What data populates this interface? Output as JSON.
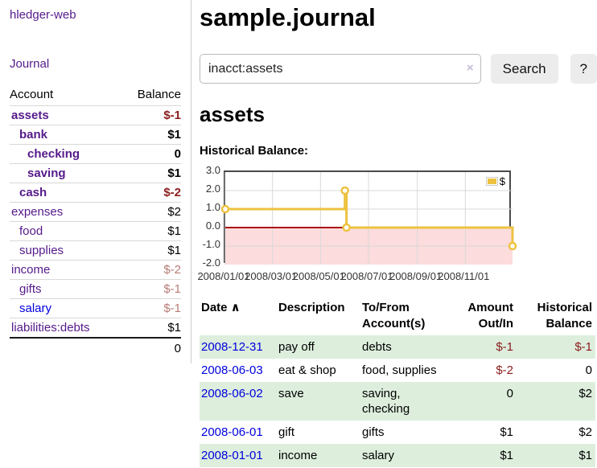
{
  "app": {
    "brand": "hledger-web"
  },
  "sidebar": {
    "journal_label": "Journal",
    "accounts_table": {
      "headers": [
        "Account",
        "Balance"
      ],
      "rows": [
        {
          "name": "assets",
          "balance": "$-1",
          "indent": 1,
          "emph": true
        },
        {
          "name": "bank",
          "balance": "$1",
          "indent": 2,
          "emph": true
        },
        {
          "name": "checking",
          "balance": "0",
          "indent": 3,
          "emph": true
        },
        {
          "name": "saving",
          "balance": "$1",
          "indent": 3,
          "emph": true
        },
        {
          "name": "cash",
          "balance": "$-2",
          "indent": 2,
          "emph": true
        },
        {
          "name": "expenses",
          "balance": "$2",
          "indent": 1
        },
        {
          "name": "food",
          "balance": "$1",
          "indent": 2
        },
        {
          "name": "supplies",
          "balance": "$1",
          "indent": 2
        },
        {
          "name": "income",
          "balance": "$-2",
          "indent": 1
        },
        {
          "name": "gifts",
          "balance": "$-1",
          "indent": 2
        },
        {
          "name": "salary",
          "balance": "$-1",
          "indent": 2,
          "visited": false
        },
        {
          "name": "liabilities:debts",
          "balance": "$1",
          "indent": 1
        }
      ],
      "total": "0"
    }
  },
  "header": {
    "title": "sample.journal"
  },
  "search": {
    "value": "inacct:assets",
    "clear_icon": "×",
    "button_label": "Search",
    "help_label": "?"
  },
  "account_page": {
    "title": "assets",
    "chart_label": "Historical Balance:"
  },
  "chart_data": {
    "type": "line",
    "step": true,
    "title": "Historical Balance:",
    "series": [
      {
        "name": "$",
        "color": "#EDC240",
        "points": [
          [
            "2008-01-01",
            1.0
          ],
          [
            "2008-06-01",
            2.0
          ],
          [
            "2008-06-03",
            0.0
          ],
          [
            "2008-12-31",
            -1.0
          ]
        ]
      }
    ],
    "x_range": [
      "2008-01-01",
      "2008-12-31"
    ],
    "ylim": [
      -2.0,
      3.0
    ],
    "y_ticks": [
      3.0,
      2.0,
      1.0,
      0.0,
      -1.0,
      -2.0
    ],
    "x_ticks": [
      "2008/01/01",
      "2008/03/01",
      "2008/05/01",
      "2008/07/01",
      "2008/09/01",
      "2008/11/01"
    ],
    "legend": {
      "position": "top-right",
      "label": "$"
    },
    "grid": true,
    "negative_region_color": "#fcdcdc",
    "zero_line_color": "#aa1414"
  },
  "register_table": {
    "headers": [
      {
        "lines": [
          "Date"
        ],
        "sort_indicator": "∧",
        "align": "left"
      },
      {
        "lines": [
          "Description"
        ],
        "align": "left"
      },
      {
        "lines": [
          "To/From",
          "Account(s)"
        ],
        "align": "left"
      },
      {
        "lines": [
          "Amount",
          "Out/In"
        ],
        "align": "right"
      },
      {
        "lines": [
          "Historical",
          "Balance"
        ],
        "align": "right"
      }
    ],
    "rows": [
      {
        "date": "2008-12-31",
        "description": "pay off",
        "accounts": "debts",
        "amount": "$-1",
        "balance": "$-1"
      },
      {
        "date": "2008-06-03",
        "description": "eat & shop",
        "accounts": "food, supplies",
        "amount": "$-2",
        "balance": "0"
      },
      {
        "date": "2008-06-02",
        "description": "save",
        "accounts": "saving, checking",
        "amount": "0",
        "balance": "$2"
      },
      {
        "date": "2008-06-01",
        "description": "gift",
        "accounts": "gifts",
        "amount": "$1",
        "balance": "$2"
      },
      {
        "date": "2008-01-01",
        "description": "income",
        "accounts": "salary",
        "amount": "$1",
        "balance": "$1"
      }
    ]
  },
  "colors": {
    "link_visited": "#551a8b",
    "link_unvisited": "#0000dd",
    "negative_strong": "#8b1c1c",
    "negative_dimmed": "#b87b76",
    "row_stripe": "#ddeedd",
    "chart_line": "#EDC240",
    "chart_negative_region": "#fcdcdc",
    "chart_zero_line": "#aa1414",
    "chart_border": "#4a4a4a"
  }
}
